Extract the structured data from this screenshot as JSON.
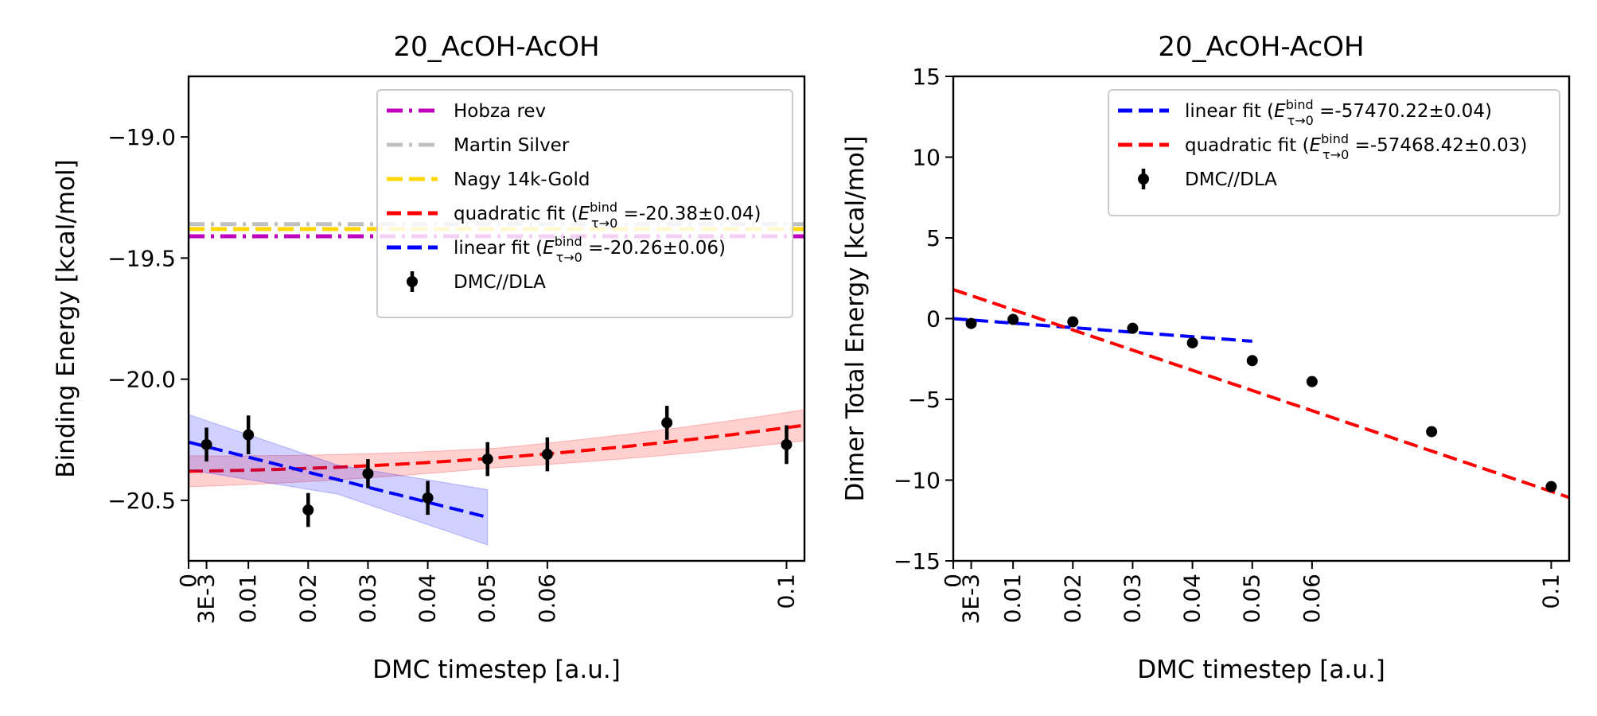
{
  "colors": {
    "hobza": "#bf00bf",
    "martin": "#c0c0c0",
    "nagy": "#ffd700",
    "quadratic": "#ff0000",
    "linear": "#0000ff",
    "dmc": "#000000"
  },
  "chart_data": [
    {
      "type": "scatter",
      "title": "20_AcOH-AcOH",
      "xlabel": "DMC timestep [a.u.]",
      "ylabel": "Binding Energy [kcal/mol]",
      "xlim": [
        0,
        0.103
      ],
      "ylim": [
        -20.75,
        -18.75
      ],
      "xticks": [
        0,
        0.003,
        0.01,
        0.02,
        0.03,
        0.04,
        0.05,
        0.06,
        0.1
      ],
      "xtick_labels": [
        "0",
        "3E-3",
        "0.01",
        "0.02",
        "0.03",
        "0.04",
        "0.05",
        "0.06",
        "0.1"
      ],
      "yticks": [
        -20.5,
        -20.0,
        -19.5,
        -19.0
      ],
      "ytick_labels": [
        "−20.5",
        "−20.0",
        "−19.5",
        "−19.0"
      ],
      "legend_position": "top-right",
      "reference_lines": [
        {
          "name": "Hobza rev",
          "y": -19.41,
          "style": "dashdot",
          "color_key": "hobza"
        },
        {
          "name": "Martin Silver",
          "y": -19.36,
          "style": "dashdot",
          "color_key": "martin"
        },
        {
          "name": "Nagy 14k-Gold",
          "y": -19.38,
          "style": "dashed",
          "color_key": "nagy"
        }
      ],
      "fits": [
        {
          "name": "quadratic fit",
          "legend_prefix": "quadratic fit (",
          "legend_value": " =-20.38±0.04)",
          "kind": "quadratic",
          "coeffs": [
            -20.38,
            0.3,
            15.0
          ],
          "x_range": [
            0,
            0.103
          ],
          "band": 0.04,
          "color_key": "quadratic"
        },
        {
          "name": "linear fit",
          "legend_prefix": "linear fit (",
          "legend_value": " =-20.26±0.06)",
          "kind": "linear",
          "coeffs": [
            -20.26,
            -6.2
          ],
          "x_range": [
            0,
            0.05
          ],
          "band": 0.06,
          "color_key": "linear"
        }
      ],
      "series": [
        {
          "name": "DMC//DLA",
          "color_key": "dmc",
          "x": [
            0.003,
            0.01,
            0.02,
            0.03,
            0.04,
            0.05,
            0.06,
            0.08,
            0.1
          ],
          "y": [
            -20.27,
            -20.23,
            -20.54,
            -20.39,
            -20.49,
            -20.33,
            -20.31,
            -20.18,
            -20.27
          ],
          "yerr": [
            0.07,
            0.08,
            0.07,
            0.06,
            0.07,
            0.07,
            0.07,
            0.07,
            0.08
          ]
        }
      ],
      "legend_order": [
        "Hobza rev",
        "Martin Silver",
        "Nagy 14k-Gold",
        "quadratic fit",
        "linear fit",
        "DMC//DLA"
      ]
    },
    {
      "type": "scatter",
      "title": "20_AcOH-AcOH",
      "xlabel": "DMC timestep [a.u.]",
      "ylabel": "Dimer Total Energy [kcal/mol]",
      "xlim": [
        0,
        0.103
      ],
      "ylim": [
        -15,
        15
      ],
      "xticks": [
        0,
        0.003,
        0.01,
        0.02,
        0.03,
        0.04,
        0.05,
        0.06,
        0.1
      ],
      "xtick_labels": [
        "0",
        "3E-3",
        "0.01",
        "0.02",
        "0.03",
        "0.04",
        "0.05",
        "0.06",
        "0.1"
      ],
      "yticks": [
        -15,
        -10,
        -5,
        0,
        5,
        10,
        15
      ],
      "ytick_labels": [
        "−15",
        "−10",
        "−5",
        "0",
        "5",
        "10",
        "15"
      ],
      "legend_position": "top-right",
      "reference_lines": [],
      "fits": [
        {
          "name": "linear fit",
          "legend_prefix": "linear fit (",
          "legend_value": " =-57470.22±0.04)",
          "kind": "linear",
          "coeffs": [
            0.0,
            -28.0
          ],
          "x_range": [
            0,
            0.05
          ],
          "band": 0,
          "color_key": "linear"
        },
        {
          "name": "quadratic fit",
          "legend_prefix": "quadratic fit (",
          "legend_value": " =-57468.42±0.03)",
          "kind": "linear",
          "coeffs": [
            1.8,
            -125.0
          ],
          "x_range": [
            0,
            0.103
          ],
          "band": 0,
          "color_key": "quadratic"
        }
      ],
      "series": [
        {
          "name": "DMC//DLA",
          "color_key": "dmc",
          "x": [
            0.003,
            0.01,
            0.02,
            0.03,
            0.04,
            0.05,
            0.06,
            0.08,
            0.1
          ],
          "y": [
            -0.3,
            -0.05,
            -0.2,
            -0.6,
            -1.5,
            -2.6,
            -3.9,
            -7.0,
            -10.4
          ],
          "yerr": [
            0.1,
            0.1,
            0.1,
            0.1,
            0.1,
            0.1,
            0.1,
            0.1,
            0.1
          ]
        }
      ],
      "legend_order": [
        "linear fit",
        "quadratic fit",
        "DMC//DLA"
      ]
    }
  ],
  "legend_math": {
    "sym": "E",
    "sup": "bind",
    "sub": "τ→0"
  }
}
